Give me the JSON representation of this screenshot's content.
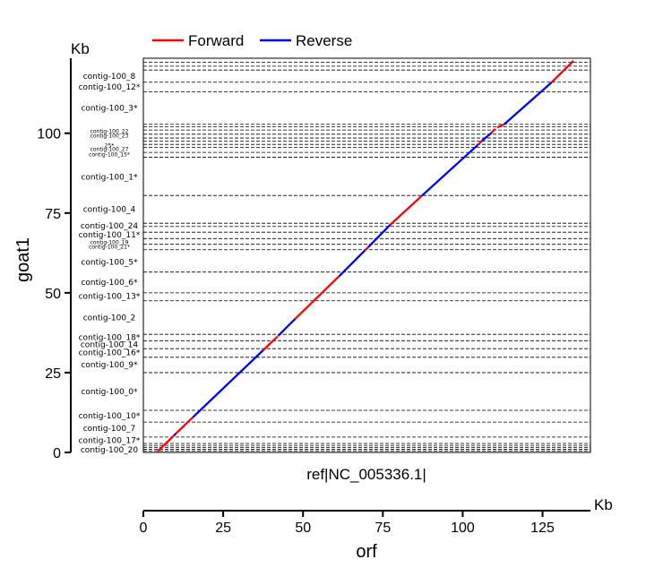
{
  "chart_data": {
    "type": "line",
    "title": "",
    "xlabel": "orf",
    "ylabel": "goat1",
    "x_unit": "Kb",
    "y_unit": "Kb",
    "xlim": [
      0,
      140
    ],
    "ylim": [
      0,
      123.5
    ],
    "x_ticks": [
      "0",
      "25",
      "50",
      "75",
      "100",
      "125"
    ],
    "y_ticks": [
      "0",
      "25",
      "50",
      "75",
      "100"
    ],
    "reference_label": "ref|NC_005336.1|",
    "legend": [
      {
        "label": "Forward",
        "color": "#ff0000"
      },
      {
        "label": "Reverse",
        "color": "#0000ff"
      }
    ],
    "grid": false,
    "legend_position": "top",
    "contig_boundaries": [
      0.5,
      1.0,
      1.6,
      2.2,
      2.8,
      4.8,
      9.5,
      13.2,
      25.0,
      29.8,
      32.5,
      35.0,
      37.0,
      47.5,
      50.0,
      56.5,
      63.5,
      65.2,
      67.0,
      69.0,
      70.8,
      71.8,
      80.5,
      92.5,
      94.0,
      95.6,
      96.5,
      97.5,
      98.5,
      99.7,
      101.0,
      102.0,
      102.8,
      113.0,
      116.0,
      119.8,
      121.0,
      122.2,
      123.5
    ],
    "contig_labels": [
      {
        "name": "contig-100_20",
        "y": 0.9
      },
      {
        "name": "contig-100_17*",
        "y": 3.8
      },
      {
        "name": "contig-100_7",
        "y": 7.6
      },
      {
        "name": "contig-100_10*",
        "y": 11.6
      },
      {
        "name": "contig-100_0*",
        "y": 19.1
      },
      {
        "name": "contig-100_9*",
        "y": 27.6
      },
      {
        "name": "contig-100_16*",
        "y": 31.3
      },
      {
        "name": "contig-100_14",
        "y": 33.9
      },
      {
        "name": "contig-100_18*",
        "y": 36.1
      },
      {
        "name": "contig-100_2",
        "y": 42.3
      },
      {
        "name": "contig-100_13*",
        "y": 49.0
      },
      {
        "name": "contig-100_6*",
        "y": 53.4
      },
      {
        "name": "contig-100_5*",
        "y": 59.7
      },
      {
        "name": "contig-100_21*",
        "y": 64.4
      },
      {
        "name": "contig-100_19",
        "y": 65.9
      },
      {
        "name": "contig-100_11*",
        "y": 68.2
      },
      {
        "name": "contig-100_24",
        "y": 71.1
      },
      {
        "name": "contig-100_4",
        "y": 76.2
      },
      {
        "name": "contig-100_1*",
        "y": 86.4
      },
      {
        "name": "contig-100_15*",
        "y": 93.3
      },
      {
        "name": "contig-100_27",
        "y": 95.0
      },
      {
        "name": "25*",
        "y": 96.1
      },
      {
        "name": "contig-100_23",
        "y": 99.3
      },
      {
        "name": "contig-100_22",
        "y": 100.7
      },
      {
        "name": "contig-100_3*",
        "y": 108.0
      },
      {
        "name": "contig-100_12*",
        "y": 114.6
      },
      {
        "name": "contig-100_8",
        "y": 117.9
      }
    ],
    "series": [
      {
        "name": "Forward",
        "color": "#ff0000",
        "segments": [
          [
            [
              4.4,
              0.3
            ],
            [
              9.6,
              5.3
            ]
          ],
          [
            [
              10.2,
              5.9
            ],
            [
              15.5,
              11.0
            ]
          ],
          [
            [
              37.5,
              32.0
            ],
            [
              42.0,
              36.3
            ]
          ],
          [
            [
              42.1,
              36.4
            ],
            [
              42.3,
              36.6
            ]
          ],
          [
            [
              47.5,
              41.8
            ],
            [
              61.3,
              55.2
            ]
          ],
          [
            [
              69.4,
              63.3
            ],
            [
              70.4,
              64.3
            ]
          ],
          [
            [
              77.4,
              71.4
            ],
            [
              87.2,
              80.4
            ]
          ],
          [
            [
              104.8,
              96.4
            ],
            [
              106.1,
              97.7
            ]
          ],
          [
            [
              109.0,
              100.1
            ],
            [
              110.2,
              101.4
            ]
          ],
          [
            [
              110.8,
              101.8
            ],
            [
              113.0,
              102.8
            ]
          ],
          [
            [
              127.8,
              115.9
            ],
            [
              134.7,
              122.7
            ]
          ]
        ]
      },
      {
        "name": "Reverse",
        "color": "#0000ff",
        "segments": [
          [
            [
              9.6,
              5.3
            ],
            [
              10.2,
              5.9
            ]
          ],
          [
            [
              15.5,
              11.0
            ],
            [
              37.5,
              32.0
            ]
          ],
          [
            [
              42.3,
              36.6
            ],
            [
              47.5,
              41.8
            ]
          ],
          [
            [
              61.3,
              55.2
            ],
            [
              69.4,
              63.3
            ]
          ],
          [
            [
              70.4,
              64.3
            ],
            [
              77.4,
              71.4
            ]
          ],
          [
            [
              87.2,
              80.4
            ],
            [
              104.8,
              96.4
            ]
          ],
          [
            [
              106.1,
              97.7
            ],
            [
              109.0,
              100.1
            ]
          ],
          [
            [
              113.0,
              102.8
            ],
            [
              127.8,
              115.9
            ]
          ]
        ]
      }
    ]
  }
}
